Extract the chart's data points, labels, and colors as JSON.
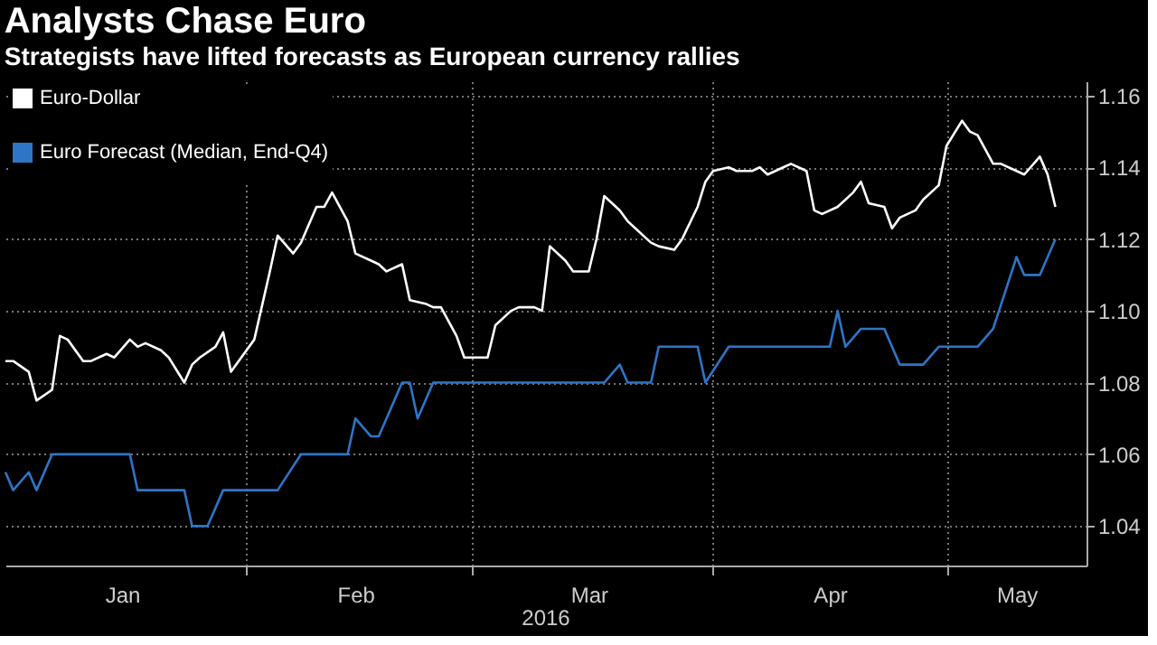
{
  "chart_data": {
    "type": "line",
    "title": "Analysts Chase Euro",
    "subtitle": "Strategists have lifted forecasts as European currency rallies",
    "annotations": [
      "2016"
    ],
    "series": [
      {
        "name": "Euro-Dollar",
        "color": "#ffffff",
        "x": [
          "2016-01-01",
          "2016-01-02",
          "2016-01-04",
          "2016-01-05",
          "2016-01-07",
          "2016-01-08",
          "2016-01-09",
          "2016-01-11",
          "2016-01-12",
          "2016-01-14",
          "2016-01-15",
          "2016-01-17",
          "2016-01-18",
          "2016-01-19",
          "2016-01-21",
          "2016-01-22",
          "2016-01-24",
          "2016-01-25",
          "2016-01-26",
          "2016-01-28",
          "2016-01-29",
          "2016-01-30",
          "2016-02-01",
          "2016-02-02",
          "2016-02-04",
          "2016-02-05",
          "2016-02-07",
          "2016-02-08",
          "2016-02-10",
          "2016-02-11",
          "2016-02-12",
          "2016-02-14",
          "2016-02-15",
          "2016-02-17",
          "2016-02-18",
          "2016-02-19",
          "2016-02-21",
          "2016-02-22",
          "2016-02-24",
          "2016-02-25",
          "2016-02-26",
          "2016-02-28",
          "2016-02-29",
          "2016-03-01",
          "2016-03-03",
          "2016-03-04",
          "2016-03-06",
          "2016-03-07",
          "2016-03-09",
          "2016-03-10",
          "2016-03-11",
          "2016-03-13",
          "2016-03-14",
          "2016-03-16",
          "2016-03-17",
          "2016-03-18",
          "2016-03-20",
          "2016-03-21",
          "2016-03-22",
          "2016-03-24",
          "2016-03-25",
          "2016-03-27",
          "2016-03-28",
          "2016-03-30",
          "2016-03-31",
          "2016-04-01",
          "2016-04-03",
          "2016-04-04",
          "2016-04-06",
          "2016-04-07",
          "2016-04-08",
          "2016-04-10",
          "2016-04-11",
          "2016-04-13",
          "2016-04-14",
          "2016-04-15",
          "2016-04-17",
          "2016-04-19",
          "2016-04-20",
          "2016-04-21",
          "2016-04-23",
          "2016-04-24",
          "2016-04-25",
          "2016-04-27",
          "2016-04-28",
          "2016-04-30",
          "2016-05-01",
          "2016-05-03",
          "2016-05-04",
          "2016-05-05",
          "2016-05-07",
          "2016-05-08",
          "2016-05-10",
          "2016-05-11",
          "2016-05-13",
          "2016-05-14",
          "2016-05-15"
        ],
        "values": [
          1.086,
          1.086,
          1.083,
          1.075,
          1.078,
          1.093,
          1.092,
          1.086,
          1.086,
          1.088,
          1.087,
          1.092,
          1.09,
          1.091,
          1.089,
          1.087,
          1.08,
          1.085,
          1.087,
          1.09,
          1.094,
          1.083,
          1.089,
          1.092,
          1.111,
          1.121,
          1.116,
          1.119,
          1.129,
          1.129,
          1.133,
          1.125,
          1.116,
          1.114,
          1.113,
          1.111,
          1.113,
          1.103,
          1.102,
          1.101,
          1.101,
          1.093,
          1.087,
          1.087,
          1.087,
          1.096,
          1.1,
          1.101,
          1.101,
          1.1,
          1.118,
          1.114,
          1.111,
          1.111,
          1.12,
          1.132,
          1.128,
          1.125,
          1.123,
          1.119,
          1.118,
          1.117,
          1.12,
          1.129,
          1.136,
          1.139,
          1.14,
          1.139,
          1.139,
          1.14,
          1.138,
          1.14,
          1.141,
          1.139,
          1.128,
          1.127,
          1.129,
          1.133,
          1.136,
          1.13,
          1.129,
          1.123,
          1.126,
          1.128,
          1.131,
          1.135,
          1.146,
          1.153,
          1.15,
          1.149,
          1.141,
          1.141,
          1.139,
          1.138,
          1.143,
          1.138,
          1.129
        ]
      },
      {
        "name": "Euro Forecast (Median, End-Q4)",
        "color": "#2e75c7",
        "x": [
          "2016-01-01",
          "2016-01-02",
          "2016-01-04",
          "2016-01-05",
          "2016-01-07",
          "2016-01-17",
          "2016-01-18",
          "2016-01-24",
          "2016-01-25",
          "2016-01-27",
          "2016-01-29",
          "2016-02-05",
          "2016-02-08",
          "2016-02-14",
          "2016-02-15",
          "2016-02-17",
          "2016-02-18",
          "2016-02-19",
          "2016-02-21",
          "2016-02-22",
          "2016-02-23",
          "2016-02-25",
          "2016-03-18",
          "2016-03-20",
          "2016-03-21",
          "2016-03-24",
          "2016-03-25",
          "2016-03-30",
          "2016-03-31",
          "2016-04-03",
          "2016-04-16",
          "2016-04-17",
          "2016-04-18",
          "2016-04-20",
          "2016-04-23",
          "2016-04-25",
          "2016-04-28",
          "2016-04-30",
          "2016-05-05",
          "2016-05-07",
          "2016-05-10",
          "2016-05-11",
          "2016-05-13",
          "2016-05-15"
        ],
        "values": [
          1.055,
          1.05,
          1.055,
          1.05,
          1.06,
          1.06,
          1.05,
          1.05,
          1.04,
          1.04,
          1.05,
          1.05,
          1.06,
          1.06,
          1.07,
          1.065,
          1.065,
          1.07,
          1.08,
          1.08,
          1.07,
          1.08,
          1.08,
          1.085,
          1.08,
          1.08,
          1.09,
          1.09,
          1.08,
          1.09,
          1.09,
          1.1,
          1.09,
          1.095,
          1.095,
          1.085,
          1.085,
          1.09,
          1.09,
          1.095,
          1.115,
          1.11,
          1.11,
          1.12
        ]
      }
    ],
    "xlim": [
      "2016-01-01",
      "2016-05-19"
    ],
    "xticks": [
      {
        "value": "2016-01-16",
        "label": "Jan"
      },
      {
        "value": "2016-02-01",
        "label": null
      },
      {
        "value": "2016-02-15",
        "label": "Feb"
      },
      {
        "value": "2016-03-01",
        "label": null
      },
      {
        "value": "2016-03-16",
        "label": "Mar"
      },
      {
        "value": "2016-04-01",
        "label": null
      },
      {
        "value": "2016-04-16",
        "label": "Apr"
      },
      {
        "value": "2016-05-01",
        "label": null
      },
      {
        "value": "2016-05-10",
        "label": "May"
      }
    ],
    "ylim": [
      1.029,
      1.164
    ],
    "yticks": [
      {
        "value": 1.04,
        "label": "1.04"
      },
      {
        "value": 1.06,
        "label": "1.06"
      },
      {
        "value": 1.08,
        "label": "1.08"
      },
      {
        "value": 1.1,
        "label": "1.10"
      },
      {
        "value": 1.12,
        "label": "1.12"
      },
      {
        "value": 1.14,
        "label": "1.14"
      },
      {
        "value": 1.16,
        "label": "1.16"
      }
    ],
    "grid": true,
    "legend": "top left",
    "marker": "none",
    "line_style": "solid"
  }
}
